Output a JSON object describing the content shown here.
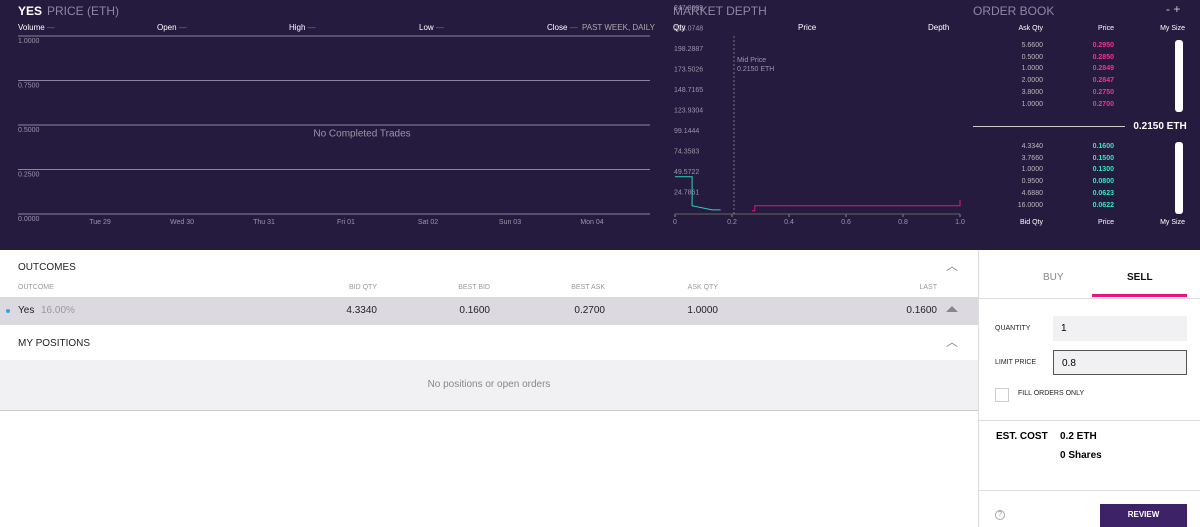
{
  "price_panel": {
    "title": "YES",
    "subtitle": "PRICE (ETH)",
    "columns": [
      "Volume",
      "Open",
      "High",
      "Low",
      "Close"
    ],
    "period": "PAST WEEK, DAILY",
    "ylim": [
      0,
      1
    ],
    "yticks": [
      {
        "value": 1,
        "label": "1.0000"
      },
      {
        "value": 0.75,
        "label": "0.7500"
      },
      {
        "value": 0.5,
        "label": "0.5000"
      },
      {
        "value": 0.25,
        "label": "0.2500"
      },
      {
        "value": 0,
        "label": "0.0000"
      }
    ],
    "dates": [
      "Tue 29",
      "Wed 30",
      "Thu 31",
      "Fri 01",
      "Sat 02",
      "Sun 03",
      "Mon 04"
    ],
    "empty_message": "No Completed Trades"
  },
  "market_depth": {
    "title": "MARKET DEPTH",
    "columns": [
      "Qty",
      "Price",
      "Depth"
    ],
    "mid_price_label": "Mid Price",
    "mid_price": "0.2150 ETH",
    "xlim": [
      0,
      1
    ],
    "ylim": [
      0,
      247.8609
    ],
    "yticks": [
      247.8609,
      223.0748,
      198.2887,
      173.5026,
      148.7165,
      123.9304,
      99.1444,
      74.3583,
      49.5722,
      24.7861
    ],
    "xticks": [
      0,
      0.2,
      0.4,
      0.6,
      0.8,
      {
        "value": 1,
        "label": "1.0"
      }
    ],
    "series": [
      {
        "color": "#2ad4b5",
        "x": [
          0,
          0.06,
          0.06,
          0.13,
          0.16
        ],
        "values": [
          45,
          45,
          10,
          5,
          5
        ]
      },
      {
        "color": "#e8157a",
        "x": [
          0.27,
          0.28,
          0.28,
          1,
          1
        ],
        "values": [
          4,
          4,
          10,
          10,
          17
        ]
      }
    ]
  },
  "order_book": {
    "title": "ORDER BOOK",
    "controls": "- +",
    "ask_header": [
      "Ask Qty",
      "Price",
      "My Size"
    ],
    "asks": [
      [
        "5.6600",
        "0.2950"
      ],
      [
        "0.5000",
        "0.2850"
      ],
      [
        "1.0000",
        "0.2849"
      ],
      [
        "2.0000",
        "0.2847"
      ],
      [
        "3.8000",
        "0.2750"
      ],
      [
        "1.0000",
        "0.2700"
      ]
    ],
    "spread": "0.2150 ETH",
    "bids": [
      [
        "4.3340",
        "0.1600"
      ],
      [
        "3.7660",
        "0.1500"
      ],
      [
        "1.0000",
        "0.1300"
      ],
      [
        "0.9500",
        "0.0800"
      ],
      [
        "4.6880",
        "0.0623"
      ],
      [
        "16.0000",
        "0.0622"
      ]
    ],
    "bid_header": [
      "Bid Qty",
      "Price",
      "My Size"
    ]
  },
  "outcomes": {
    "title": "OUTCOMES",
    "columns": [
      "OUTCOME",
      "BID QTY",
      "BEST BID",
      "BEST ASK",
      "ASK QTY",
      "LAST"
    ],
    "rows": [
      [
        "Yes",
        "16.00%",
        "4.3340",
        "0.1600",
        "0.2700",
        "1.0000",
        "0.1600"
      ]
    ]
  },
  "positions": {
    "title": "MY POSITIONS",
    "empty_message": "No positions or open orders"
  },
  "trade": {
    "tabs": [
      "BUY",
      "SELL"
    ],
    "quantity_label": "QUANTITY",
    "quantity": "1",
    "limit_price_label": "LIMIT PRICE",
    "limit_price": "0.8",
    "fill_only_label": "FILL ORDERS ONLY",
    "est_cost_label": "EST. COST",
    "est_cost": "0.2 ETH",
    "shares": "0 Shares",
    "help": "?",
    "submit": "REVIEW"
  }
}
